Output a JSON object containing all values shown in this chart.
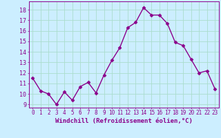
{
  "x": [
    0,
    1,
    2,
    3,
    4,
    5,
    6,
    7,
    8,
    9,
    10,
    11,
    12,
    13,
    14,
    15,
    16,
    17,
    18,
    19,
    20,
    21,
    22,
    23
  ],
  "y": [
    11.5,
    10.3,
    10.0,
    9.0,
    10.2,
    9.4,
    10.7,
    11.1,
    10.1,
    11.8,
    13.2,
    14.4,
    16.3,
    16.8,
    18.2,
    17.5,
    17.5,
    16.7,
    14.9,
    14.6,
    13.3,
    12.0,
    12.2,
    10.5
  ],
  "line_color": "#8B008B",
  "marker": "D",
  "markersize": 2.5,
  "linewidth": 1.0,
  "bg_color": "#cceeff",
  "grid_color": "#aaddcc",
  "tick_color": "#8B008B",
  "xlabel": "Windchill (Refroidissement éolien,°C)",
  "xlabel_fontsize": 6.5,
  "ylabel_ticks": [
    9,
    10,
    11,
    12,
    13,
    14,
    15,
    16,
    17,
    18
  ],
  "xlim": [
    -0.5,
    23.5
  ],
  "ylim": [
    8.7,
    18.8
  ],
  "xticks": [
    0,
    1,
    2,
    3,
    4,
    5,
    6,
    7,
    8,
    9,
    10,
    11,
    12,
    13,
    14,
    15,
    16,
    17,
    18,
    19,
    20,
    21,
    22,
    23
  ],
  "label_color": "#8B008B",
  "spine_color": "#8B008B",
  "tick_fontsize": 5.5,
  "ytick_fontsize": 6.0
}
